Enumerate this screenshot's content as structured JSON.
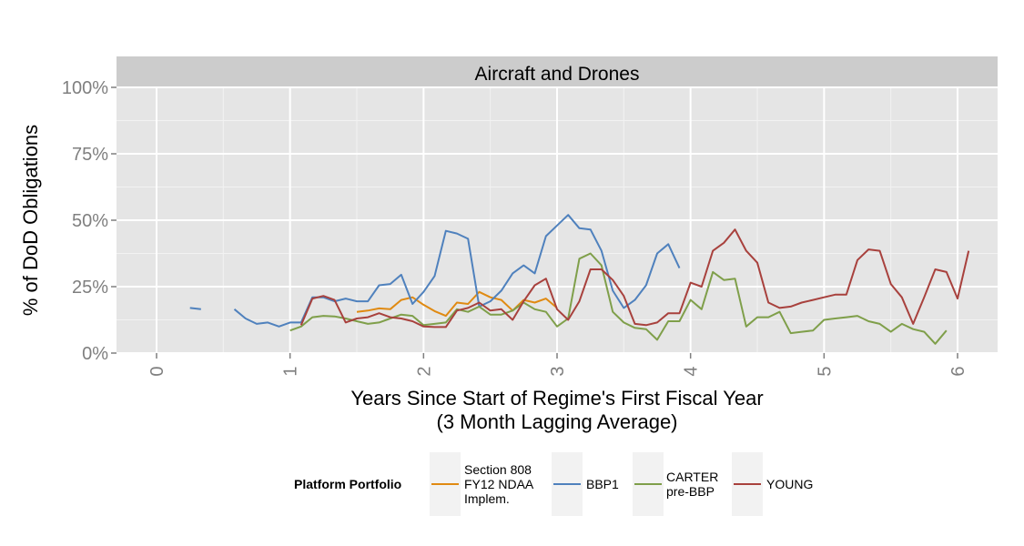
{
  "chart_data": {
    "type": "line",
    "facet_title": "Aircraft and Drones",
    "xlabel": "Years Since Start of Regime's First Fiscal Year",
    "xlabel_sub": "(3 Month Lagging Average)",
    "ylabel": "% of DoD Obligations",
    "xlim": [
      -0.3,
      6.3
    ],
    "ylim": [
      0,
      1.0
    ],
    "x_ticks": [
      {
        "value": 0,
        "label": "0"
      },
      {
        "value": 1,
        "label": "1"
      },
      {
        "value": 2,
        "label": "2"
      },
      {
        "value": 3,
        "label": "3"
      },
      {
        "value": 4,
        "label": "4"
      },
      {
        "value": 5,
        "label": "5"
      },
      {
        "value": 6,
        "label": "6"
      }
    ],
    "y_ticks": [
      {
        "value": 0,
        "label": "0%"
      },
      {
        "value": 0.25,
        "label": "25%"
      },
      {
        "value": 0.5,
        "label": "50%"
      },
      {
        "value": 0.75,
        "label": "75%"
      },
      {
        "value": 1.0,
        "label": "100%"
      }
    ],
    "grid": true,
    "legend": {
      "position": "bottom",
      "title": "Platform Portfolio"
    },
    "series": [
      {
        "name": "Section 808\nFY12 NDAA\nImplem.",
        "label_lines": [
          "Section 808",
          "FY12 NDAA",
          "Implem."
        ],
        "color": "#E08A12",
        "segments": [
          [
            [
              1.5,
              0.155
            ],
            [
              1.583,
              0.16
            ],
            [
              1.667,
              0.168
            ],
            [
              1.75,
              0.165
            ],
            [
              1.833,
              0.2
            ],
            [
              1.917,
              0.21
            ],
            [
              2.0,
              0.182
            ],
            [
              2.083,
              0.158
            ],
            [
              2.167,
              0.14
            ],
            [
              2.25,
              0.19
            ],
            [
              2.333,
              0.185
            ],
            [
              2.417,
              0.23
            ],
            [
              2.5,
              0.21
            ],
            [
              2.583,
              0.2
            ],
            [
              2.667,
              0.16
            ],
            [
              2.75,
              0.2
            ],
            [
              2.833,
              0.19
            ],
            [
              2.917,
              0.205
            ],
            [
              3.0,
              0.17
            ]
          ]
        ]
      },
      {
        "name": "BBP1",
        "label_lines": [
          "BBP1"
        ],
        "color": "#4F81BD",
        "segments": [
          [
            [
              0.25,
              0.17
            ],
            [
              0.333,
              0.165
            ]
          ],
          [
            [
              0.583,
              0.165
            ],
            [
              0.667,
              0.13
            ],
            [
              0.75,
              0.11
            ],
            [
              0.833,
              0.115
            ],
            [
              0.917,
              0.1
            ],
            [
              1.0,
              0.115
            ],
            [
              1.083,
              0.115
            ],
            [
              1.167,
              0.21
            ],
            [
              1.25,
              0.21
            ],
            [
              1.333,
              0.195
            ],
            [
              1.417,
              0.205
            ],
            [
              1.5,
              0.195
            ],
            [
              1.583,
              0.195
            ],
            [
              1.667,
              0.255
            ],
            [
              1.75,
              0.26
            ],
            [
              1.833,
              0.295
            ],
            [
              1.917,
              0.185
            ],
            [
              2.0,
              0.23
            ],
            [
              2.083,
              0.29
            ],
            [
              2.167,
              0.46
            ],
            [
              2.25,
              0.45
            ],
            [
              2.333,
              0.43
            ],
            [
              2.417,
              0.175
            ],
            [
              2.5,
              0.195
            ],
            [
              2.583,
              0.235
            ],
            [
              2.667,
              0.3
            ],
            [
              2.75,
              0.33
            ],
            [
              2.833,
              0.3
            ],
            [
              2.917,
              0.44
            ],
            [
              3.0,
              0.48
            ],
            [
              3.083,
              0.52
            ],
            [
              3.167,
              0.47
            ],
            [
              3.25,
              0.465
            ],
            [
              3.333,
              0.385
            ],
            [
              3.417,
              0.235
            ],
            [
              3.5,
              0.17
            ],
            [
              3.583,
              0.2
            ],
            [
              3.667,
              0.255
            ],
            [
              3.75,
              0.375
            ],
            [
              3.833,
              0.41
            ],
            [
              3.917,
              0.32
            ]
          ]
        ]
      },
      {
        "name": "CARTER\npre-BBP",
        "label_lines": [
          "CARTER",
          "pre-BBP"
        ],
        "color": "#7F9F4A",
        "segments": [
          [
            [
              1.0,
              0.085
            ],
            [
              1.083,
              0.1
            ],
            [
              1.167,
              0.135
            ],
            [
              1.25,
              0.14
            ],
            [
              1.333,
              0.138
            ],
            [
              1.417,
              0.13
            ],
            [
              1.5,
              0.12
            ],
            [
              1.583,
              0.11
            ],
            [
              1.667,
              0.115
            ],
            [
              1.75,
              0.13
            ],
            [
              1.833,
              0.145
            ],
            [
              1.917,
              0.14
            ],
            [
              2.0,
              0.105
            ],
            [
              2.083,
              0.11
            ],
            [
              2.167,
              0.115
            ],
            [
              2.25,
              0.165
            ],
            [
              2.333,
              0.155
            ],
            [
              2.417,
              0.175
            ],
            [
              2.5,
              0.145
            ],
            [
              2.583,
              0.145
            ],
            [
              2.667,
              0.16
            ],
            [
              2.75,
              0.19
            ],
            [
              2.833,
              0.165
            ],
            [
              2.917,
              0.155
            ],
            [
              3.0,
              0.1
            ],
            [
              3.083,
              0.13
            ],
            [
              3.167,
              0.355
            ],
            [
              3.25,
              0.375
            ],
            [
              3.333,
              0.33
            ],
            [
              3.417,
              0.155
            ],
            [
              3.5,
              0.115
            ],
            [
              3.583,
              0.095
            ],
            [
              3.667,
              0.09
            ],
            [
              3.75,
              0.05
            ],
            [
              3.833,
              0.12
            ],
            [
              3.917,
              0.12
            ],
            [
              4.0,
              0.2
            ],
            [
              4.083,
              0.165
            ],
            [
              4.167,
              0.305
            ],
            [
              4.25,
              0.275
            ],
            [
              4.333,
              0.28
            ],
            [
              4.417,
              0.1
            ],
            [
              4.5,
              0.135
            ],
            [
              4.583,
              0.135
            ],
            [
              4.667,
              0.155
            ],
            [
              4.75,
              0.075
            ],
            [
              4.833,
              0.08
            ],
            [
              4.917,
              0.085
            ],
            [
              5.0,
              0.125
            ],
            [
              5.083,
              0.13
            ],
            [
              5.167,
              0.135
            ],
            [
              5.25,
              0.14
            ],
            [
              5.333,
              0.12
            ],
            [
              5.417,
              0.11
            ],
            [
              5.5,
              0.08
            ],
            [
              5.583,
              0.11
            ],
            [
              5.667,
              0.09
            ],
            [
              5.75,
              0.08
            ],
            [
              5.833,
              0.035
            ],
            [
              5.917,
              0.085
            ]
          ]
        ]
      },
      {
        "name": "YOUNG",
        "label_lines": [
          "YOUNG"
        ],
        "color": "#A8413D",
        "segments": [
          [
            [
              1.083,
              0.105
            ],
            [
              1.167,
              0.205
            ],
            [
              1.25,
              0.215
            ],
            [
              1.333,
              0.2
            ],
            [
              1.417,
              0.115
            ],
            [
              1.5,
              0.13
            ],
            [
              1.583,
              0.135
            ],
            [
              1.667,
              0.15
            ],
            [
              1.75,
              0.135
            ],
            [
              1.833,
              0.13
            ],
            [
              1.917,
              0.12
            ],
            [
              2.0,
              0.1
            ],
            [
              2.083,
              0.098
            ],
            [
              2.167,
              0.098
            ],
            [
              2.25,
              0.16
            ],
            [
              2.333,
              0.17
            ],
            [
              2.417,
              0.19
            ],
            [
              2.5,
              0.16
            ],
            [
              2.583,
              0.165
            ],
            [
              2.667,
              0.125
            ],
            [
              2.75,
              0.195
            ],
            [
              2.833,
              0.255
            ],
            [
              2.917,
              0.28
            ],
            [
              3.0,
              0.165
            ],
            [
              3.083,
              0.125
            ],
            [
              3.167,
              0.195
            ],
            [
              3.25,
              0.315
            ],
            [
              3.333,
              0.315
            ],
            [
              3.417,
              0.275
            ],
            [
              3.5,
              0.215
            ],
            [
              3.583,
              0.11
            ],
            [
              3.667,
              0.105
            ],
            [
              3.75,
              0.115
            ],
            [
              3.833,
              0.15
            ],
            [
              3.917,
              0.15
            ],
            [
              4.0,
              0.265
            ],
            [
              4.083,
              0.25
            ],
            [
              4.167,
              0.385
            ],
            [
              4.25,
              0.415
            ],
            [
              4.333,
              0.465
            ],
            [
              4.417,
              0.385
            ],
            [
              4.5,
              0.34
            ],
            [
              4.583,
              0.19
            ],
            [
              4.667,
              0.17
            ],
            [
              4.75,
              0.175
            ],
            [
              4.833,
              0.19
            ],
            [
              4.917,
              0.2
            ],
            [
              5.0,
              0.21
            ],
            [
              5.083,
              0.22
            ],
            [
              5.167,
              0.22
            ],
            [
              5.25,
              0.35
            ],
            [
              5.333,
              0.39
            ],
            [
              5.417,
              0.385
            ],
            [
              5.5,
              0.26
            ],
            [
              5.583,
              0.21
            ],
            [
              5.667,
              0.11
            ],
            [
              5.75,
              0.21
            ],
            [
              5.833,
              0.315
            ],
            [
              5.917,
              0.305
            ],
            [
              6.0,
              0.205
            ],
            [
              6.083,
              0.385
            ]
          ]
        ]
      }
    ]
  }
}
